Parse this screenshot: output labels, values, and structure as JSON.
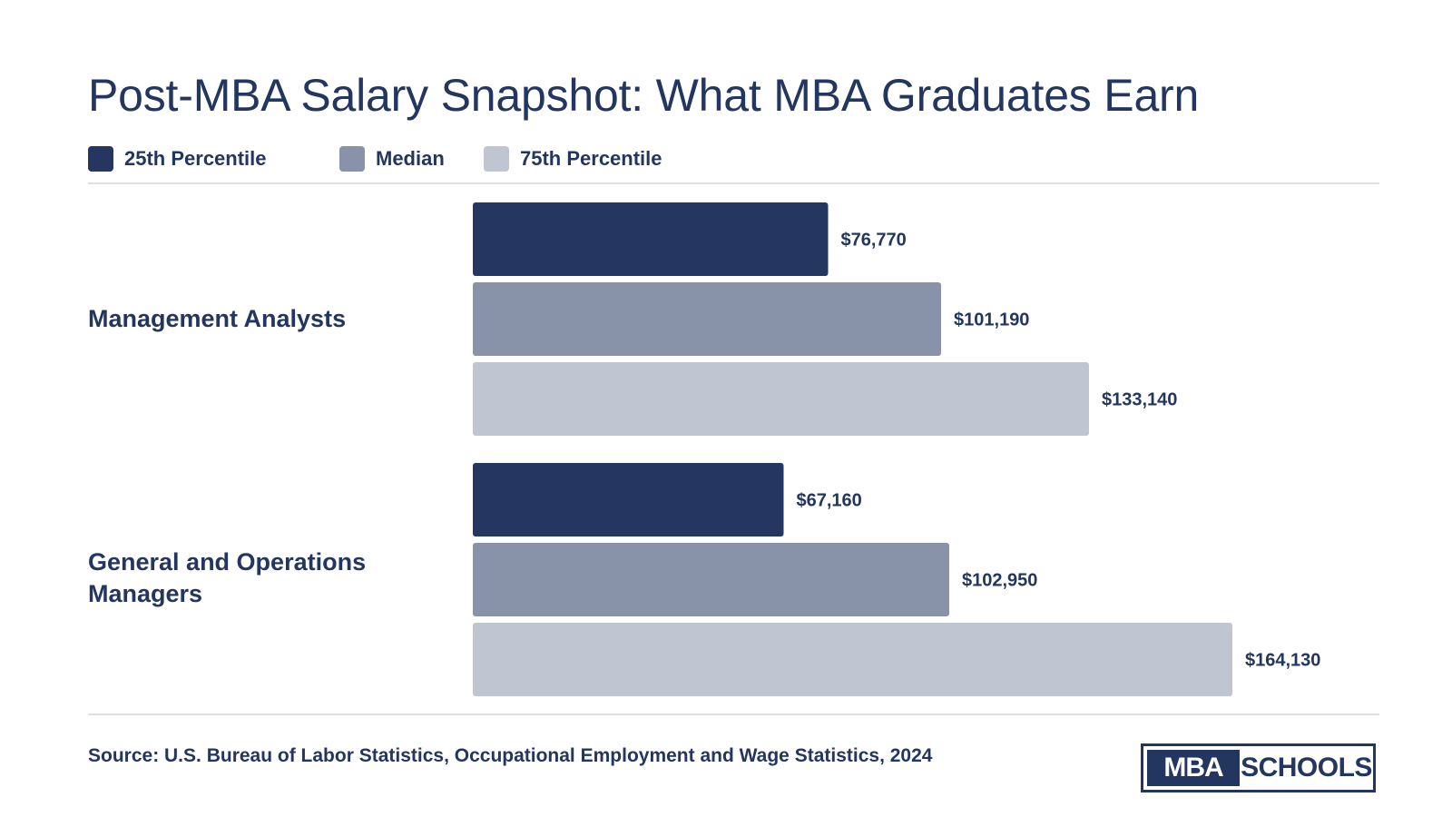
{
  "title": "Post-MBA Salary Snapshot: What MBA Graduates Earn",
  "source": "Source: U.S. Bureau of Labor Statistics, Occupational Employment and Wage Statistics, 2024",
  "logo": {
    "part1": "MBA",
    "part2": "SCHOOLS"
  },
  "colors": {
    "text": "#23365f",
    "p25": "#253761",
    "median": "#8893aa",
    "p75": "#bfc5d1",
    "rule": "#dde1e7"
  },
  "chart_data": {
    "type": "bar",
    "orientation": "horizontal",
    "title": "Post-MBA Salary Snapshot: What MBA Graduates Earn",
    "categories": [
      "Management Analysts",
      "General and Operations Managers"
    ],
    "series": [
      {
        "name": "25th Percentile",
        "color": "#253761",
        "values": [
          76770,
          67160
        ],
        "labels": [
          "$76,770",
          "$67,160"
        ]
      },
      {
        "name": "Median",
        "color": "#8893aa",
        "values": [
          101190,
          102950
        ],
        "labels": [
          "$101,190",
          "$102,950"
        ]
      },
      {
        "name": "75th Percentile",
        "color": "#bfc5d1",
        "values": [
          133140,
          164130
        ],
        "labels": [
          "$133,140",
          "$164,130"
        ]
      }
    ],
    "xlim": [
      0,
      164130
    ],
    "legend": "top-left",
    "grid": false
  }
}
